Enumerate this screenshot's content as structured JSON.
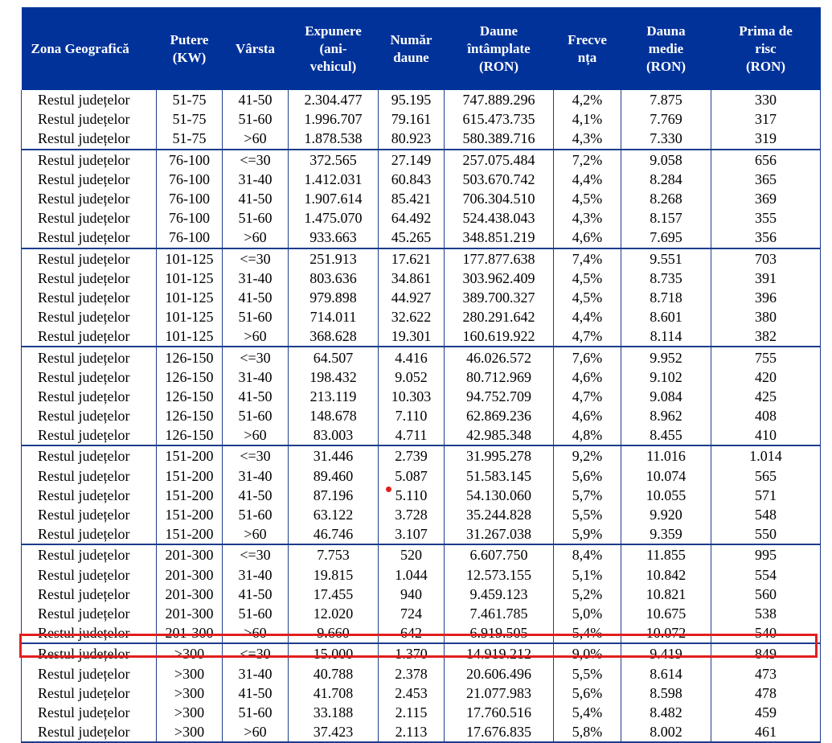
{
  "table": {
    "headers": [
      "Zona Geografică",
      "Putere (KW)",
      "Vârsta",
      "Expunere (ani-vehicul)",
      "Număr daune",
      "Daune întâmplate (RON)",
      "Frecvența",
      "Dauna medie (RON)",
      "Prima de risc (RON)"
    ],
    "header_display": [
      "Zona Geografică",
      "Putere\n(KW)",
      "Vârsta",
      "Expunere\n(ani-\nvehicul)",
      "Număr\ndaune",
      "Daune\nîntâmplate\n(RON)",
      "Frecve\nnța",
      "Dauna\nmedie\n(RON)",
      "Prima de\nrisc\n(RON)"
    ],
    "rows": [
      [
        "Restul județelor",
        "51-75",
        "41-50",
        "2.304.477",
        "95.195",
        "747.889.296",
        "4,2%",
        "7.875",
        "330"
      ],
      [
        "Restul județelor",
        "51-75",
        "51-60",
        "1.996.707",
        "79.161",
        "615.473.735",
        "4,1%",
        "7.769",
        "317"
      ],
      [
        "Restul județelor",
        "51-75",
        ">60",
        "1.878.538",
        "80.923",
        "580.389.716",
        "4,3%",
        "7.330",
        "319"
      ],
      [
        "Restul județelor",
        "76-100",
        "<=30",
        "372.565",
        "27.149",
        "257.075.484",
        "7,2%",
        "9.058",
        "656"
      ],
      [
        "Restul județelor",
        "76-100",
        "31-40",
        "1.412.031",
        "60.843",
        "503.670.742",
        "4,4%",
        "8.284",
        "365"
      ],
      [
        "Restul județelor",
        "76-100",
        "41-50",
        "1.907.614",
        "85.421",
        "706.304.510",
        "4,5%",
        "8.268",
        "369"
      ],
      [
        "Restul județelor",
        "76-100",
        "51-60",
        "1.475.070",
        "64.492",
        "524.438.043",
        "4,3%",
        "8.157",
        "355"
      ],
      [
        "Restul județelor",
        "76-100",
        ">60",
        "933.663",
        "45.265",
        "348.851.219",
        "4,6%",
        "7.695",
        "356"
      ],
      [
        "Restul județelor",
        "101-125",
        "<=30",
        "251.913",
        "17.621",
        "177.877.638",
        "7,4%",
        "9.551",
        "703"
      ],
      [
        "Restul județelor",
        "101-125",
        "31-40",
        "803.636",
        "34.861",
        "303.962.409",
        "4,5%",
        "8.735",
        "391"
      ],
      [
        "Restul județelor",
        "101-125",
        "41-50",
        "979.898",
        "44.927",
        "389.700.327",
        "4,5%",
        "8.718",
        "396"
      ],
      [
        "Restul județelor",
        "101-125",
        "51-60",
        "714.011",
        "32.622",
        "280.291.642",
        "4,4%",
        "8.601",
        "380"
      ],
      [
        "Restul județelor",
        "101-125",
        ">60",
        "368.628",
        "19.301",
        "160.619.922",
        "4,7%",
        "8.114",
        "382"
      ],
      [
        "Restul județelor",
        "126-150",
        "<=30",
        "64.507",
        "4.416",
        "46.026.572",
        "7,6%",
        "9.952",
        "755"
      ],
      [
        "Restul județelor",
        "126-150",
        "31-40",
        "198.432",
        "9.052",
        "80.712.969",
        "4,6%",
        "9.102",
        "420"
      ],
      [
        "Restul județelor",
        "126-150",
        "41-50",
        "213.119",
        "10.303",
        "94.752.709",
        "4,7%",
        "9.084",
        "425"
      ],
      [
        "Restul județelor",
        "126-150",
        "51-60",
        "148.678",
        "7.110",
        "62.869.236",
        "4,6%",
        "8.962",
        "408"
      ],
      [
        "Restul județelor",
        "126-150",
        ">60",
        "83.003",
        "4.711",
        "42.985.348",
        "4,8%",
        "8.455",
        "410"
      ],
      [
        "Restul județelor",
        "151-200",
        "<=30",
        "31.446",
        "2.739",
        "31.995.278",
        "9,2%",
        "11.016",
        "1.014"
      ],
      [
        "Restul județelor",
        "151-200",
        "31-40",
        "89.460",
        "5.087",
        "51.583.145",
        "5,6%",
        "10.074",
        "565"
      ],
      [
        "Restul județelor",
        "151-200",
        "41-50",
        "87.196",
        "5.110",
        "54.130.060",
        "5,7%",
        "10.055",
        "571"
      ],
      [
        "Restul județelor",
        "151-200",
        "51-60",
        "63.122",
        "3.728",
        "35.244.828",
        "5,5%",
        "9.920",
        "548"
      ],
      [
        "Restul județelor",
        "151-200",
        ">60",
        "46.746",
        "3.107",
        "31.267.038",
        "5,9%",
        "9.359",
        "550"
      ],
      [
        "Restul județelor",
        "201-300",
        "<=30",
        "7.753",
        "520",
        "6.607.750",
        "8,4%",
        "11.855",
        "995"
      ],
      [
        "Restul județelor",
        "201-300",
        "31-40",
        "19.815",
        "1.044",
        "12.573.155",
        "5,1%",
        "10.842",
        "554"
      ],
      [
        "Restul județelor",
        "201-300",
        "41-50",
        "17.455",
        "940",
        "9.459.123",
        "5,2%",
        "10.821",
        "560"
      ],
      [
        "Restul județelor",
        "201-300",
        "51-60",
        "12.020",
        "724",
        "7.461.785",
        "5,0%",
        "10.675",
        "538"
      ],
      [
        "Restul județelor",
        "201-300",
        ">60",
        "9.660",
        "642",
        "6.919.505",
        "5,4%",
        "10.072",
        "540"
      ],
      [
        "Restul județelor",
        ">300",
        "<=30",
        "15.000",
        "1.370",
        "14.919.212",
        "9,0%",
        "9.419",
        "849"
      ],
      [
        "Restul județelor",
        ">300",
        "31-40",
        "40.788",
        "2.378",
        "20.606.496",
        "5,5%",
        "8.614",
        "473"
      ],
      [
        "Restul județelor",
        ">300",
        "41-50",
        "41.708",
        "2.453",
        "21.077.983",
        "5,6%",
        "8.598",
        "478"
      ],
      [
        "Restul județelor",
        ">300",
        "51-60",
        "33.188",
        "2.115",
        "17.760.516",
        "5,4%",
        "8.482",
        "459"
      ],
      [
        "Restul județelor",
        ">300",
        ">60",
        "37.423",
        "2.113",
        "17.676.835",
        "5,8%",
        "8.002",
        "461"
      ]
    ],
    "group_starts": [
      0,
      3,
      8,
      13,
      18,
      23,
      28
    ],
    "highlighted_row": 28
  },
  "colors": {
    "header_bg": "#00329a",
    "header_text": "#ffffff",
    "grid": "#1c3c8c",
    "highlight": "#e0201e"
  }
}
